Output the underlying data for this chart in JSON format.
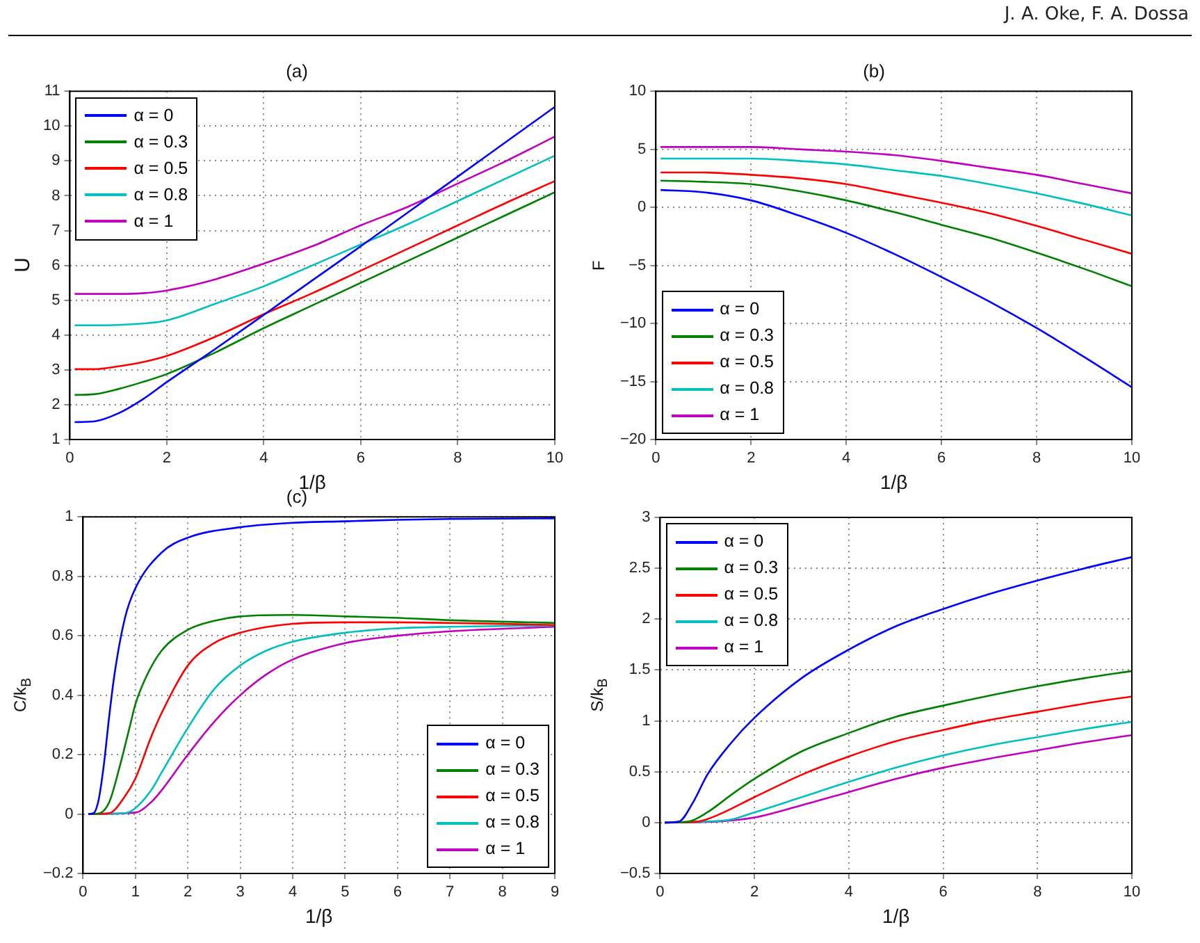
{
  "chart_data": [
    {
      "type": "line",
      "title": "(a)",
      "xlabel": "1/β",
      "ylabel": "U",
      "annotations": [
        "J. A. Oke, F. A. Dossa"
      ],
      "grid": true,
      "legend": "top left",
      "xlim": [
        0,
        10
      ],
      "xticks": [
        0,
        2,
        4,
        6,
        8,
        10
      ],
      "ylim": [
        1,
        11
      ],
      "yticks": [
        1,
        2,
        3,
        4,
        5,
        6,
        7,
        8,
        9,
        10,
        11
      ],
      "x": [
        0.1,
        0.5,
        1,
        1.5,
        2,
        3,
        4,
        5,
        6,
        7,
        8,
        9,
        10
      ],
      "series": [
        {
          "name": "α = 0",
          "color": "#0000ff",
          "values": [
            1.5,
            1.52,
            1.75,
            2.15,
            2.65,
            3.6,
            4.58,
            5.57,
            6.55,
            7.55,
            8.55,
            9.55,
            10.55
          ]
        },
        {
          "name": "α = 0.3",
          "color": "#008000",
          "values": [
            2.28,
            2.3,
            2.45,
            2.65,
            2.88,
            3.5,
            4.2,
            4.85,
            5.5,
            6.15,
            6.8,
            7.45,
            8.1
          ]
        },
        {
          "name": "α = 0.5",
          "color": "#ff0000",
          "values": [
            3.02,
            3.02,
            3.1,
            3.22,
            3.4,
            3.95,
            4.6,
            5.2,
            5.85,
            6.5,
            7.15,
            7.8,
            8.42
          ]
        },
        {
          "name": "α = 0.8",
          "color": "#00bfbf",
          "values": [
            4.28,
            4.28,
            4.29,
            4.33,
            4.42,
            4.9,
            5.4,
            6.0,
            6.6,
            7.2,
            7.85,
            8.5,
            9.15
          ]
        },
        {
          "name": "α = 1",
          "color": "#bf00bf",
          "values": [
            5.18,
            5.18,
            5.18,
            5.2,
            5.28,
            5.6,
            6.05,
            6.55,
            7.15,
            7.7,
            8.35,
            9.0,
            9.7
          ]
        }
      ]
    },
    {
      "type": "line",
      "title": "(b)",
      "xlabel": "1/β",
      "ylabel": "F",
      "grid": true,
      "legend": "bottom left",
      "xlim": [
        0,
        10
      ],
      "xticks": [
        0,
        2,
        4,
        6,
        8,
        10
      ],
      "ylim": [
        -20,
        10
      ],
      "yticks": [
        -20,
        -15,
        -10,
        -5,
        0,
        5,
        10
      ],
      "x": [
        0.1,
        1,
        2,
        3,
        4,
        5,
        6,
        7,
        8,
        9,
        10
      ],
      "series": [
        {
          "name": "α = 0",
          "color": "#0000ff",
          "values": [
            1.5,
            1.3,
            0.6,
            -0.7,
            -2.2,
            -4.0,
            -6.0,
            -8.1,
            -10.4,
            -12.9,
            -15.5
          ]
        },
        {
          "name": "α = 0.3",
          "color": "#008000",
          "values": [
            2.3,
            2.2,
            2.0,
            1.4,
            0.6,
            -0.4,
            -1.5,
            -2.6,
            -3.9,
            -5.3,
            -6.8
          ]
        },
        {
          "name": "α = 0.5",
          "color": "#ff0000",
          "values": [
            3.0,
            3.0,
            2.8,
            2.5,
            2.0,
            1.2,
            0.4,
            -0.5,
            -1.6,
            -2.8,
            -4.0
          ]
        },
        {
          "name": "α = 0.8",
          "color": "#00bfbf",
          "values": [
            4.2,
            4.2,
            4.2,
            4.0,
            3.7,
            3.2,
            2.7,
            2.0,
            1.2,
            0.3,
            -0.7
          ]
        },
        {
          "name": "α = 1",
          "color": "#bf00bf",
          "values": [
            5.2,
            5.2,
            5.2,
            5.0,
            4.8,
            4.5,
            4.0,
            3.4,
            2.8,
            2.0,
            1.2
          ]
        }
      ]
    },
    {
      "type": "line",
      "title": "(c)",
      "xlabel": "1/β",
      "ylabel": "C/k$_{B}$",
      "grid": true,
      "legend": "bottom right",
      "xlim": [
        0,
        9
      ],
      "xticks": [
        0,
        1,
        2,
        3,
        4,
        5,
        6,
        7,
        8,
        9
      ],
      "ylim": [
        -0.2,
        1
      ],
      "yticks": [
        -0.2,
        0,
        0.2,
        0.4,
        0.6,
        0.8,
        1
      ],
      "series": [
        {
          "name": "α = 0",
          "color": "#0000ff",
          "x": [
            0.1,
            0.2,
            0.3,
            0.4,
            0.5,
            0.6,
            0.8,
            1,
            1.5,
            2,
            3,
            4,
            5,
            6,
            7,
            9
          ],
          "values": [
            0,
            0.003,
            0.05,
            0.17,
            0.33,
            0.47,
            0.66,
            0.76,
            0.88,
            0.93,
            0.965,
            0.98,
            0.985,
            0.99,
            0.993,
            0.995
          ]
        },
        {
          "name": "α = 0.3",
          "color": "#008000",
          "x": [
            0.1,
            0.3,
            0.5,
            0.7,
            0.9,
            1,
            1.2,
            1.5,
            2,
            2.5,
            3,
            4,
            5,
            6,
            7,
            9
          ],
          "values": [
            0,
            0.002,
            0.04,
            0.16,
            0.3,
            0.37,
            0.46,
            0.55,
            0.62,
            0.65,
            0.665,
            0.67,
            0.665,
            0.66,
            0.652,
            0.643
          ]
        },
        {
          "name": "α = 0.5",
          "color": "#ff0000",
          "x": [
            0.1,
            0.5,
            0.8,
            1,
            1.3,
            1.5,
            2,
            2.5,
            3,
            4,
            5,
            6,
            7,
            9
          ],
          "values": [
            0,
            0.003,
            0.06,
            0.12,
            0.26,
            0.34,
            0.5,
            0.575,
            0.61,
            0.64,
            0.645,
            0.645,
            0.643,
            0.636
          ]
        },
        {
          "name": "α = 0.8",
          "color": "#00bfbf",
          "x": [
            0.1,
            0.8,
            1,
            1.3,
            1.5,
            2,
            2.5,
            3,
            3.5,
            4,
            5,
            6,
            7,
            9
          ],
          "values": [
            0,
            0.003,
            0.02,
            0.08,
            0.14,
            0.29,
            0.42,
            0.5,
            0.55,
            0.58,
            0.61,
            0.625,
            0.63,
            0.635
          ]
        },
        {
          "name": "α = 1",
          "color": "#bf00bf",
          "x": [
            0.1,
            1,
            1.3,
            1.5,
            2,
            2.5,
            3,
            3.5,
            4,
            5,
            6,
            7,
            9
          ],
          "values": [
            0,
            0.005,
            0.04,
            0.08,
            0.2,
            0.31,
            0.4,
            0.47,
            0.52,
            0.575,
            0.6,
            0.615,
            0.63
          ]
        }
      ]
    },
    {
      "type": "line",
      "xlabel": "1/β",
      "ylabel": "S/k$_{B}$",
      "grid": true,
      "legend": "top left",
      "xlim": [
        0,
        10
      ],
      "xticks": [
        0,
        2,
        4,
        6,
        8,
        10
      ],
      "ylim": [
        -0.5,
        3
      ],
      "yticks": [
        -0.5,
        0,
        0.5,
        1,
        1.5,
        2,
        2.5,
        3
      ],
      "series": [
        {
          "name": "α = 0",
          "color": "#0000ff",
          "x": [
            0.1,
            0.4,
            0.7,
            1,
            1.5,
            2,
            3,
            4,
            5,
            6,
            7,
            8,
            9,
            10
          ],
          "values": [
            0,
            0.01,
            0.2,
            0.47,
            0.78,
            1.03,
            1.42,
            1.7,
            1.93,
            2.1,
            2.25,
            2.38,
            2.5,
            2.61
          ]
        },
        {
          "name": "α = 0.3",
          "color": "#008000",
          "x": [
            0.1,
            0.6,
            1,
            1.5,
            2,
            3,
            4,
            5,
            6,
            7,
            8,
            9,
            10
          ],
          "values": [
            0,
            0.01,
            0.1,
            0.27,
            0.43,
            0.7,
            0.88,
            1.04,
            1.15,
            1.25,
            1.34,
            1.42,
            1.49
          ]
        },
        {
          "name": "α = 0.5",
          "color": "#ff0000",
          "x": [
            0.1,
            0.8,
            1.2,
            2,
            3,
            4,
            5,
            6,
            7,
            8,
            9,
            10
          ],
          "values": [
            0,
            0.01,
            0.07,
            0.25,
            0.47,
            0.65,
            0.8,
            0.91,
            1.01,
            1.09,
            1.17,
            1.24
          ]
        },
        {
          "name": "α = 0.8",
          "color": "#00bfbf",
          "x": [
            0.1,
            1,
            1.5,
            2,
            3,
            4,
            5,
            6,
            7,
            8,
            9,
            10
          ],
          "values": [
            0,
            0.01,
            0.03,
            0.1,
            0.25,
            0.4,
            0.54,
            0.66,
            0.76,
            0.84,
            0.92,
            0.99
          ]
        },
        {
          "name": "α = 1",
          "color": "#bf00bf",
          "x": [
            0.1,
            1.2,
            2,
            3,
            4,
            5,
            6,
            7,
            8,
            9,
            10
          ],
          "values": [
            0,
            0.01,
            0.05,
            0.17,
            0.3,
            0.43,
            0.54,
            0.63,
            0.71,
            0.79,
            0.86
          ]
        }
      ]
    }
  ]
}
